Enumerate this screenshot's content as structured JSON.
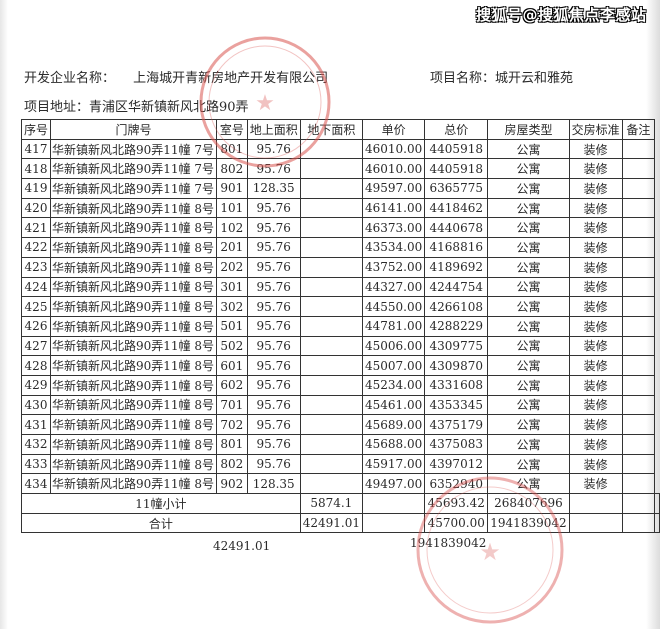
{
  "watermark": "搜狐号@搜狐焦点李感站",
  "header": {
    "developer_label": "开发企业名称：",
    "developer_value": "上海城开青新房地产开发有限公司",
    "project_label": "项目名称：",
    "project_value": "城开云和雅苑",
    "address_label": "项目地址：",
    "address_value": "青浦区华新镇新风北路90弄"
  },
  "table": {
    "columns": [
      "序号",
      "门牌号",
      "室号",
      "地上面积",
      "地下面积",
      "单价",
      "总价",
      "房屋类型",
      "交房标准",
      "备注"
    ],
    "rows": [
      [
        "417",
        "华新镇新风北路90弄11幢 7号",
        "801",
        "95.76",
        "",
        "46010.00",
        "4405918",
        "公寓",
        "装修",
        ""
      ],
      [
        "418",
        "华新镇新风北路90弄11幢 7号",
        "802",
        "95.76",
        "",
        "46010.00",
        "4405918",
        "公寓",
        "装修",
        ""
      ],
      [
        "419",
        "华新镇新风北路90弄11幢 7号",
        "901",
        "128.35",
        "",
        "49597.00",
        "6365775",
        "公寓",
        "装修",
        ""
      ],
      [
        "420",
        "华新镇新风北路90弄11幢 8号",
        "101",
        "95.76",
        "",
        "46141.00",
        "4418462",
        "公寓",
        "装修",
        ""
      ],
      [
        "421",
        "华新镇新风北路90弄11幢 8号",
        "102",
        "95.76",
        "",
        "46373.00",
        "4440678",
        "公寓",
        "装修",
        ""
      ],
      [
        "422",
        "华新镇新风北路90弄11幢 8号",
        "201",
        "95.76",
        "",
        "43534.00",
        "4168816",
        "公寓",
        "装修",
        ""
      ],
      [
        "423",
        "华新镇新风北路90弄11幢 8号",
        "202",
        "95.76",
        "",
        "43752.00",
        "4189692",
        "公寓",
        "装修",
        ""
      ],
      [
        "424",
        "华新镇新风北路90弄11幢 8号",
        "301",
        "95.76",
        "",
        "44327.00",
        "4244754",
        "公寓",
        "装修",
        ""
      ],
      [
        "425",
        "华新镇新风北路90弄11幢 8号",
        "302",
        "95.76",
        "",
        "44550.00",
        "4266108",
        "公寓",
        "装修",
        ""
      ],
      [
        "426",
        "华新镇新风北路90弄11幢 8号",
        "501",
        "95.76",
        "",
        "44781.00",
        "4288229",
        "公寓",
        "装修",
        ""
      ],
      [
        "427",
        "华新镇新风北路90弄11幢 8号",
        "502",
        "95.76",
        "",
        "45006.00",
        "4309775",
        "公寓",
        "装修",
        ""
      ],
      [
        "428",
        "华新镇新风北路90弄11幢 8号",
        "601",
        "95.76",
        "",
        "45007.00",
        "4309870",
        "公寓",
        "装修",
        ""
      ],
      [
        "429",
        "华新镇新风北路90弄11幢 8号",
        "602",
        "95.76",
        "",
        "45234.00",
        "4331608",
        "公寓",
        "装修",
        ""
      ],
      [
        "430",
        "华新镇新风北路90弄11幢 8号",
        "701",
        "95.76",
        "",
        "45461.00",
        "4353345",
        "公寓",
        "装修",
        ""
      ],
      [
        "431",
        "华新镇新风北路90弄11幢 8号",
        "702",
        "95.76",
        "",
        "45689.00",
        "4375179",
        "公寓",
        "装修",
        ""
      ],
      [
        "432",
        "华新镇新风北路90弄11幢 8号",
        "801",
        "95.76",
        "",
        "45688.00",
        "4375083",
        "公寓",
        "装修",
        ""
      ],
      [
        "433",
        "华新镇新风北路90弄11幢 8号",
        "802",
        "95.76",
        "",
        "45917.00",
        "4397012",
        "公寓",
        "装修",
        ""
      ],
      [
        "434",
        "华新镇新风北路90弄11幢 8号",
        "902",
        "128.35",
        "",
        "49497.00",
        "6352940",
        "公寓",
        "装修",
        ""
      ]
    ],
    "subtotal": {
      "label": "11幢小计",
      "area": "5874.1",
      "unit_price": "45693.42",
      "total": "268407696"
    },
    "grand_total": {
      "label": "合计",
      "area": "42491.01",
      "unit_price": "45700.00",
      "total": "1941839042"
    },
    "footer": {
      "area": "42491.01",
      "total": "1941839042"
    }
  },
  "stamp_color": "#d9534f"
}
